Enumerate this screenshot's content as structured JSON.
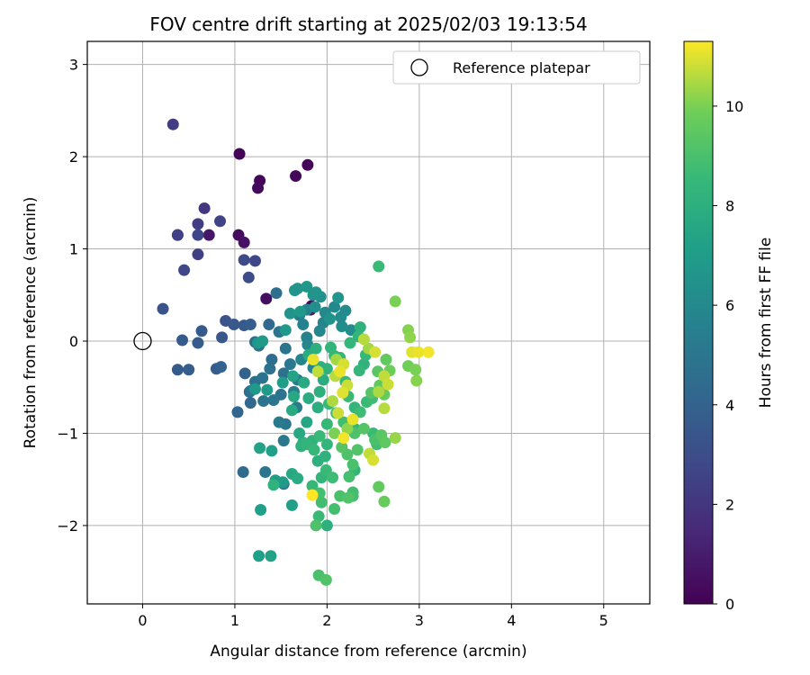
{
  "chart_data": {
    "type": "scatter",
    "title": "FOV centre drift starting at 2025/02/03 19:13:54",
    "xlabel": "Angular distance from reference (arcmin)",
    "ylabel": "Rotation from reference (arcmin)",
    "xlim": [
      -0.6,
      5.5
    ],
    "ylim": [
      -2.85,
      3.25
    ],
    "x_ticks": [
      0,
      1,
      2,
      3,
      4,
      5
    ],
    "x_tick_labels": [
      "0",
      "1",
      "2",
      "3",
      "4",
      "5"
    ],
    "y_ticks": [
      -2,
      -1,
      0,
      1,
      2,
      3
    ],
    "y_tick_labels": [
      "−2",
      "−1",
      "0",
      "1",
      "2",
      "3"
    ],
    "grid": true,
    "legend": {
      "location": "upper right",
      "entries": [
        "Reference platepar"
      ]
    },
    "reference_point": {
      "name": "Reference platepar",
      "x": 0,
      "y": 0
    },
    "colorbar": {
      "label": "Hours from first FF file",
      "range": [
        0,
        11.3
      ],
      "ticks": [
        0,
        2,
        4,
        6,
        8,
        10
      ],
      "tick_labels": [
        "0",
        "2",
        "4",
        "6",
        "8",
        "10"
      ],
      "colormap": "viridis"
    },
    "points": [
      {
        "x": 1.05,
        "y": 2.03,
        "h": 0.1
      },
      {
        "x": 1.27,
        "y": 1.74,
        "h": 0.2
      },
      {
        "x": 1.25,
        "y": 1.66,
        "h": 0.3
      },
      {
        "x": 1.79,
        "y": 1.91,
        "h": 0.2
      },
      {
        "x": 1.66,
        "y": 1.79,
        "h": 0.3
      },
      {
        "x": 1.04,
        "y": 1.15,
        "h": 0.4
      },
      {
        "x": 1.1,
        "y": 1.07,
        "h": 0.6
      },
      {
        "x": 0.72,
        "y": 1.15,
        "h": 0.8
      },
      {
        "x": 1.34,
        "y": 0.46,
        "h": 0.5
      },
      {
        "x": 1.83,
        "y": 0.38,
        "h": 0.4
      },
      {
        "x": 1.82,
        "y": 0.34,
        "h": 0.7
      },
      {
        "x": 0.33,
        "y": 2.35,
        "h": 2.3
      },
      {
        "x": 0.38,
        "y": 1.15,
        "h": 2.4
      },
      {
        "x": 0.67,
        "y": 1.44,
        "h": 2.0
      },
      {
        "x": 0.6,
        "y": 1.27,
        "h": 2.3
      },
      {
        "x": 0.84,
        "y": 1.3,
        "h": 2.6
      },
      {
        "x": 0.38,
        "y": 1.15,
        "h": 2.5
      },
      {
        "x": 0.6,
        "y": 1.15,
        "h": 2.7
      },
      {
        "x": 0.6,
        "y": 0.94,
        "h": 2.5
      },
      {
        "x": 1.1,
        "y": 0.88,
        "h": 2.9
      },
      {
        "x": 1.22,
        "y": 0.87,
        "h": 2.8
      },
      {
        "x": 0.45,
        "y": 0.77,
        "h": 2.8
      },
      {
        "x": 1.15,
        "y": 0.69,
        "h": 3.0
      },
      {
        "x": 0.22,
        "y": 0.35,
        "h": 3.3
      },
      {
        "x": 0.9,
        "y": 0.22,
        "h": 3.3
      },
      {
        "x": 0.99,
        "y": 0.18,
        "h": 3.5
      },
      {
        "x": 1.1,
        "y": 0.17,
        "h": 3.6
      },
      {
        "x": 1.17,
        "y": 0.18,
        "h": 3.8
      },
      {
        "x": 0.64,
        "y": 0.11,
        "h": 3.6
      },
      {
        "x": 0.86,
        "y": 0.04,
        "h": 3.5
      },
      {
        "x": 0.43,
        "y": 0.01,
        "h": 3.6
      },
      {
        "x": 0.6,
        "y": -0.02,
        "h": 3.7
      },
      {
        "x": 0.38,
        "y": -0.31,
        "h": 3.6
      },
      {
        "x": 0.5,
        "y": -0.31,
        "h": 3.8
      },
      {
        "x": 0.8,
        "y": -0.3,
        "h": 3.7
      },
      {
        "x": 0.85,
        "y": -0.28,
        "h": 3.9
      },
      {
        "x": 1.11,
        "y": -0.35,
        "h": 4.0
      },
      {
        "x": 1.03,
        "y": -0.77,
        "h": 4.2
      },
      {
        "x": 1.17,
        "y": -0.67,
        "h": 4.3
      },
      {
        "x": 1.09,
        "y": -1.42,
        "h": 4.4
      },
      {
        "x": 1.16,
        "y": -0.55,
        "h": 4.1
      },
      {
        "x": 1.22,
        "y": -0.01,
        "h": 4.4
      },
      {
        "x": 1.26,
        "y": -0.05,
        "h": 4.6
      },
      {
        "x": 1.37,
        "y": 0.18,
        "h": 4.3
      },
      {
        "x": 1.4,
        "y": -0.2,
        "h": 4.5
      },
      {
        "x": 1.45,
        "y": 0.52,
        "h": 4.6
      },
      {
        "x": 1.3,
        "y": -0.4,
        "h": 4.8
      },
      {
        "x": 1.38,
        "y": -0.3,
        "h": 4.7
      },
      {
        "x": 1.22,
        "y": -0.44,
        "h": 4.6
      },
      {
        "x": 1.17,
        "y": -0.54,
        "h": 4.9
      },
      {
        "x": 1.31,
        "y": -0.65,
        "h": 4.9
      },
      {
        "x": 1.42,
        "y": -0.64,
        "h": 5.0
      },
      {
        "x": 1.5,
        "y": -0.58,
        "h": 4.8
      },
      {
        "x": 1.53,
        "y": -0.35,
        "h": 4.7
      },
      {
        "x": 1.55,
        "y": -0.08,
        "h": 4.9
      },
      {
        "x": 1.48,
        "y": 0.1,
        "h": 5.0
      },
      {
        "x": 1.6,
        "y": -0.25,
        "h": 5.1
      },
      {
        "x": 1.33,
        "y": -1.42,
        "h": 5.0
      },
      {
        "x": 1.53,
        "y": -1.08,
        "h": 5.1
      },
      {
        "x": 1.48,
        "y": -0.88,
        "h": 5.2
      },
      {
        "x": 1.55,
        "y": -0.9,
        "h": 5.0
      },
      {
        "x": 1.53,
        "y": -1.55,
        "h": 5.2
      },
      {
        "x": 1.64,
        "y": -0.55,
        "h": 5.3
      },
      {
        "x": 1.68,
        "y": -0.42,
        "h": 5.3
      },
      {
        "x": 1.67,
        "y": -0.72,
        "h": 5.3
      },
      {
        "x": 1.7,
        "y": 0.28,
        "h": 5.5
      },
      {
        "x": 1.74,
        "y": 0.18,
        "h": 5.6
      },
      {
        "x": 1.78,
        "y": 0.34,
        "h": 5.6
      },
      {
        "x": 1.78,
        "y": 0.04,
        "h": 5.7
      },
      {
        "x": 1.85,
        "y": -0.29,
        "h": 5.8
      },
      {
        "x": 1.72,
        "y": -0.2,
        "h": 5.8
      },
      {
        "x": 1.79,
        "y": -0.04,
        "h": 5.9
      },
      {
        "x": 1.92,
        "y": 0.11,
        "h": 5.9
      },
      {
        "x": 1.96,
        "y": 0.2,
        "h": 5.8
      },
      {
        "x": 1.98,
        "y": 0.31,
        "h": 6.0
      },
      {
        "x": 2.08,
        "y": 0.37,
        "h": 6.0
      },
      {
        "x": 2.15,
        "y": 0.26,
        "h": 6.1
      },
      {
        "x": 2.16,
        "y": 0.16,
        "h": 6.2
      },
      {
        "x": 2.26,
        "y": 0.12,
        "h": 6.2
      },
      {
        "x": 2.2,
        "y": 0.33,
        "h": 6.1
      },
      {
        "x": 1.87,
        "y": 0.37,
        "h": 6.3
      },
      {
        "x": 1.93,
        "y": 0.48,
        "h": 6.4
      },
      {
        "x": 1.85,
        "y": 0.5,
        "h": 6.5
      },
      {
        "x": 1.88,
        "y": 0.53,
        "h": 6.6
      },
      {
        "x": 1.65,
        "y": 0.55,
        "h": 6.6
      },
      {
        "x": 1.68,
        "y": 0.57,
        "h": 6.5
      },
      {
        "x": 1.78,
        "y": 0.59,
        "h": 6.7
      },
      {
        "x": 2.12,
        "y": 0.47,
        "h": 6.6
      },
      {
        "x": 2.03,
        "y": 0.24,
        "h": 6.5
      },
      {
        "x": 1.6,
        "y": 0.3,
        "h": 6.6
      },
      {
        "x": 1.71,
        "y": 0.32,
        "h": 6.8
      },
      {
        "x": 1.25,
        "y": -0.02,
        "h": 6.7
      },
      {
        "x": 1.3,
        "y": 0.0,
        "h": 6.9
      },
      {
        "x": 1.55,
        "y": 0.12,
        "h": 6.8
      },
      {
        "x": 1.22,
        "y": -0.52,
        "h": 6.8
      },
      {
        "x": 1.35,
        "y": -0.53,
        "h": 6.9
      },
      {
        "x": 1.52,
        "y": -0.45,
        "h": 7.0
      },
      {
        "x": 1.44,
        "y": -1.51,
        "h": 7.0
      },
      {
        "x": 1.52,
        "y": -1.53,
        "h": 6.9
      },
      {
        "x": 1.28,
        "y": -1.83,
        "h": 7.1
      },
      {
        "x": 1.4,
        "y": -1.19,
        "h": 7.1
      },
      {
        "x": 1.62,
        "y": -1.78,
        "h": 7.2
      },
      {
        "x": 1.26,
        "y": -2.33,
        "h": 7.1
      },
      {
        "x": 1.39,
        "y": -2.33,
        "h": 7.3
      },
      {
        "x": 1.27,
        "y": -1.16,
        "h": 7.3
      },
      {
        "x": 1.62,
        "y": -1.44,
        "h": 7.6
      },
      {
        "x": 1.68,
        "y": -1.49,
        "h": 7.8
      },
      {
        "x": 1.42,
        "y": -1.56,
        "h": 8.2
      },
      {
        "x": 1.7,
        "y": -1.0,
        "h": 7.6
      },
      {
        "x": 1.63,
        "y": -0.38,
        "h": 7.4
      },
      {
        "x": 1.64,
        "y": -0.6,
        "h": 7.6
      },
      {
        "x": 1.75,
        "y": -0.45,
        "h": 7.7
      },
      {
        "x": 1.8,
        "y": -0.62,
        "h": 7.8
      },
      {
        "x": 1.62,
        "y": -0.75,
        "h": 7.7
      },
      {
        "x": 1.78,
        "y": -0.88,
        "h": 7.5
      },
      {
        "x": 1.9,
        "y": -0.72,
        "h": 7.9
      },
      {
        "x": 1.92,
        "y": -0.55,
        "h": 8.0
      },
      {
        "x": 1.96,
        "y": -0.42,
        "h": 7.9
      },
      {
        "x": 1.93,
        "y": -0.28,
        "h": 8.1
      },
      {
        "x": 1.88,
        "y": -0.08,
        "h": 8.0
      },
      {
        "x": 1.8,
        "y": -0.15,
        "h": 7.8
      },
      {
        "x": 2.0,
        "y": -0.3,
        "h": 8.2
      },
      {
        "x": 2.04,
        "y": -0.07,
        "h": 8.3
      },
      {
        "x": 2.08,
        "y": -0.16,
        "h": 8.5
      },
      {
        "x": 2.14,
        "y": -0.18,
        "h": 8.4
      },
      {
        "x": 2.2,
        "y": -0.44,
        "h": 8.6
      },
      {
        "x": 2.23,
        "y": -0.6,
        "h": 8.6
      },
      {
        "x": 2.3,
        "y": -0.72,
        "h": 8.3
      },
      {
        "x": 2.35,
        "y": -0.32,
        "h": 8.4
      },
      {
        "x": 2.4,
        "y": -0.25,
        "h": 8.2
      },
      {
        "x": 2.36,
        "y": 0.15,
        "h": 8.1
      },
      {
        "x": 2.34,
        "y": 0.05,
        "h": 8.3
      },
      {
        "x": 2.25,
        "y": -0.02,
        "h": 8.4
      },
      {
        "x": 2.42,
        "y": -0.15,
        "h": 8.5
      },
      {
        "x": 2.56,
        "y": 0.81,
        "h": 8.6
      },
      {
        "x": 2.49,
        "y": -0.62,
        "h": 8.7
      },
      {
        "x": 2.43,
        "y": -0.66,
        "h": 8.6
      },
      {
        "x": 2.36,
        "y": -0.77,
        "h": 8.7
      },
      {
        "x": 2.3,
        "y": -0.95,
        "h": 8.5
      },
      {
        "x": 2.18,
        "y": -0.88,
        "h": 8.8
      },
      {
        "x": 2.1,
        "y": -0.78,
        "h": 8.7
      },
      {
        "x": 2.02,
        "y": -0.68,
        "h": 8.6
      },
      {
        "x": 2.0,
        "y": -0.9,
        "h": 8.5
      },
      {
        "x": 2.0,
        "y": -1.12,
        "h": 8.4
      },
      {
        "x": 1.92,
        "y": -1.03,
        "h": 8.6
      },
      {
        "x": 1.86,
        "y": -1.18,
        "h": 8.5
      },
      {
        "x": 1.78,
        "y": -1.12,
        "h": 8.3
      },
      {
        "x": 1.84,
        "y": -1.08,
        "h": 8.2
      },
      {
        "x": 1.74,
        "y": -1.1,
        "h": 8.0
      },
      {
        "x": 1.72,
        "y": -1.14,
        "h": 8.1
      },
      {
        "x": 1.9,
        "y": -1.3,
        "h": 8.0
      },
      {
        "x": 1.98,
        "y": -1.25,
        "h": 8.2
      },
      {
        "x": 1.94,
        "y": -1.48,
        "h": 8.3
      },
      {
        "x": 1.99,
        "y": -1.4,
        "h": 8.6
      },
      {
        "x": 2.06,
        "y": -1.48,
        "h": 8.7
      },
      {
        "x": 1.84,
        "y": -1.57,
        "h": 8.5
      },
      {
        "x": 1.92,
        "y": -1.65,
        "h": 8.9
      },
      {
        "x": 1.94,
        "y": -1.75,
        "h": 8.8
      },
      {
        "x": 1.91,
        "y": -1.9,
        "h": 8.6
      },
      {
        "x": 1.88,
        "y": -2.0,
        "h": 9.1
      },
      {
        "x": 2.0,
        "y": -2.0,
        "h": 8.0
      },
      {
        "x": 2.08,
        "y": -1.82,
        "h": 8.9
      },
      {
        "x": 2.14,
        "y": -1.68,
        "h": 9.0
      },
      {
        "x": 2.23,
        "y": -1.7,
        "h": 9.2
      },
      {
        "x": 2.28,
        "y": -1.68,
        "h": 8.9
      },
      {
        "x": 2.28,
        "y": -1.64,
        "h": 8.8
      },
      {
        "x": 2.3,
        "y": -1.4,
        "h": 8.4
      },
      {
        "x": 2.24,
        "y": -1.47,
        "h": 8.9
      },
      {
        "x": 2.28,
        "y": -1.34,
        "h": 9.0
      },
      {
        "x": 2.22,
        "y": -1.23,
        "h": 9.1
      },
      {
        "x": 2.33,
        "y": -1.18,
        "h": 9.2
      },
      {
        "x": 2.16,
        "y": -1.15,
        "h": 9.3
      },
      {
        "x": 2.3,
        "y": -1.0,
        "h": 9.1
      },
      {
        "x": 2.4,
        "y": -0.95,
        "h": 9.3
      },
      {
        "x": 2.5,
        "y": -1.0,
        "h": 8.6
      },
      {
        "x": 2.52,
        "y": -1.07,
        "h": 9.0
      },
      {
        "x": 2.54,
        "y": -1.12,
        "h": 8.8
      },
      {
        "x": 2.59,
        "y": -1.02,
        "h": 9.4
      },
      {
        "x": 2.63,
        "y": -1.1,
        "h": 9.5
      },
      {
        "x": 2.56,
        "y": -1.58,
        "h": 9.6
      },
      {
        "x": 2.62,
        "y": -1.74,
        "h": 9.7
      },
      {
        "x": 1.91,
        "y": -2.54,
        "h": 9.0
      },
      {
        "x": 1.99,
        "y": -2.59,
        "h": 9.2
      },
      {
        "x": 2.48,
        "y": -0.56,
        "h": 9.3
      },
      {
        "x": 2.57,
        "y": -0.48,
        "h": 9.5
      },
      {
        "x": 2.55,
        "y": -0.33,
        "h": 9.4
      },
      {
        "x": 2.64,
        "y": -0.2,
        "h": 9.6
      },
      {
        "x": 2.68,
        "y": -0.32,
        "h": 9.8
      },
      {
        "x": 2.62,
        "y": -0.58,
        "h": 9.7
      },
      {
        "x": 2.74,
        "y": 0.43,
        "h": 10.0
      },
      {
        "x": 2.88,
        "y": 0.12,
        "h": 10.1
      },
      {
        "x": 2.9,
        "y": 0.04,
        "h": 10.2
      },
      {
        "x": 2.88,
        "y": -0.27,
        "h": 9.9
      },
      {
        "x": 2.96,
        "y": -0.31,
        "h": 10.0
      },
      {
        "x": 2.97,
        "y": -0.43,
        "h": 10.1
      },
      {
        "x": 2.74,
        "y": -1.05,
        "h": 10.3
      },
      {
        "x": 2.46,
        "y": -1.22,
        "h": 10.7
      },
      {
        "x": 2.5,
        "y": -1.29,
        "h": 10.9
      },
      {
        "x": 2.62,
        "y": -0.73,
        "h": 10.6
      },
      {
        "x": 2.66,
        "y": -0.47,
        "h": 10.8
      },
      {
        "x": 2.56,
        "y": -0.55,
        "h": 10.5
      },
      {
        "x": 2.62,
        "y": -0.38,
        "h": 10.7
      },
      {
        "x": 2.52,
        "y": -0.12,
        "h": 10.9
      },
      {
        "x": 2.45,
        "y": -0.08,
        "h": 10.4
      },
      {
        "x": 2.4,
        "y": 0.02,
        "h": 10.6
      },
      {
        "x": 2.92,
        "y": -0.12,
        "h": 11.0
      },
      {
        "x": 2.99,
        "y": -0.12,
        "h": 11.1
      },
      {
        "x": 3.1,
        "y": -0.12,
        "h": 11.2
      },
      {
        "x": 2.1,
        "y": -0.2,
        "h": 10.4
      },
      {
        "x": 2.18,
        "y": -0.25,
        "h": 10.9
      },
      {
        "x": 2.14,
        "y": -0.33,
        "h": 11.1
      },
      {
        "x": 2.09,
        "y": -0.38,
        "h": 10.6
      },
      {
        "x": 2.17,
        "y": -0.56,
        "h": 11.0
      },
      {
        "x": 2.22,
        "y": -0.48,
        "h": 10.8
      },
      {
        "x": 1.9,
        "y": -0.33,
        "h": 10.7
      },
      {
        "x": 1.85,
        "y": -0.2,
        "h": 11.1
      },
      {
        "x": 2.06,
        "y": -0.65,
        "h": 10.5
      },
      {
        "x": 2.12,
        "y": -0.78,
        "h": 10.8
      },
      {
        "x": 2.28,
        "y": -0.85,
        "h": 11.1
      },
      {
        "x": 2.22,
        "y": -0.95,
        "h": 10.2
      },
      {
        "x": 2.18,
        "y": -1.05,
        "h": 11.2
      },
      {
        "x": 2.08,
        "y": -1.0,
        "h": 10.0
      },
      {
        "x": 1.84,
        "y": -1.67,
        "h": 11.3
      }
    ]
  }
}
